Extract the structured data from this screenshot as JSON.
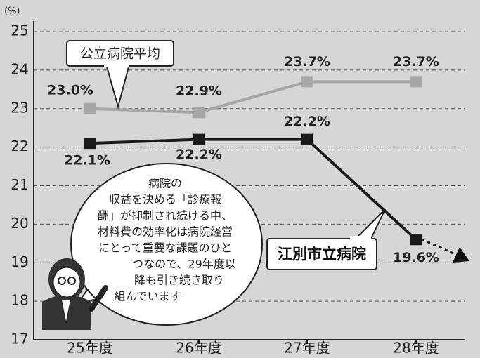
{
  "chart_data": {
    "type": "line",
    "y_unit_label": "(%)",
    "categories": [
      "25年度",
      "26年度",
      "27年度",
      "28年度"
    ],
    "series": [
      {
        "name": "公立病院平均",
        "color": "#a6a6a6",
        "values": [
          23.0,
          22.9,
          23.7,
          23.7
        ],
        "value_labels": [
          "23.0%",
          "22.9%",
          "23.7%",
          "23.7%"
        ]
      },
      {
        "name": "江別市立病院",
        "color": "#1a1a1a",
        "values": [
          22.1,
          22.2,
          22.2,
          19.6
        ],
        "value_labels": [
          "22.1%",
          "22.2%",
          "22.2%",
          "19.6%"
        ]
      }
    ],
    "ylim": [
      17,
      25
    ],
    "yticks": [
      17,
      18,
      19,
      20,
      21,
      22,
      23,
      24,
      25
    ],
    "grid": true,
    "annotation": [
      "病院の",
      "収益を決める「診療報",
      "酬」が抑制され続ける中、",
      "材料費の効率化は病院経営",
      "にとって重要な課題のひと",
      "つなので、29年度以",
      "降も引き続き取り",
      "組んでいます"
    ]
  }
}
